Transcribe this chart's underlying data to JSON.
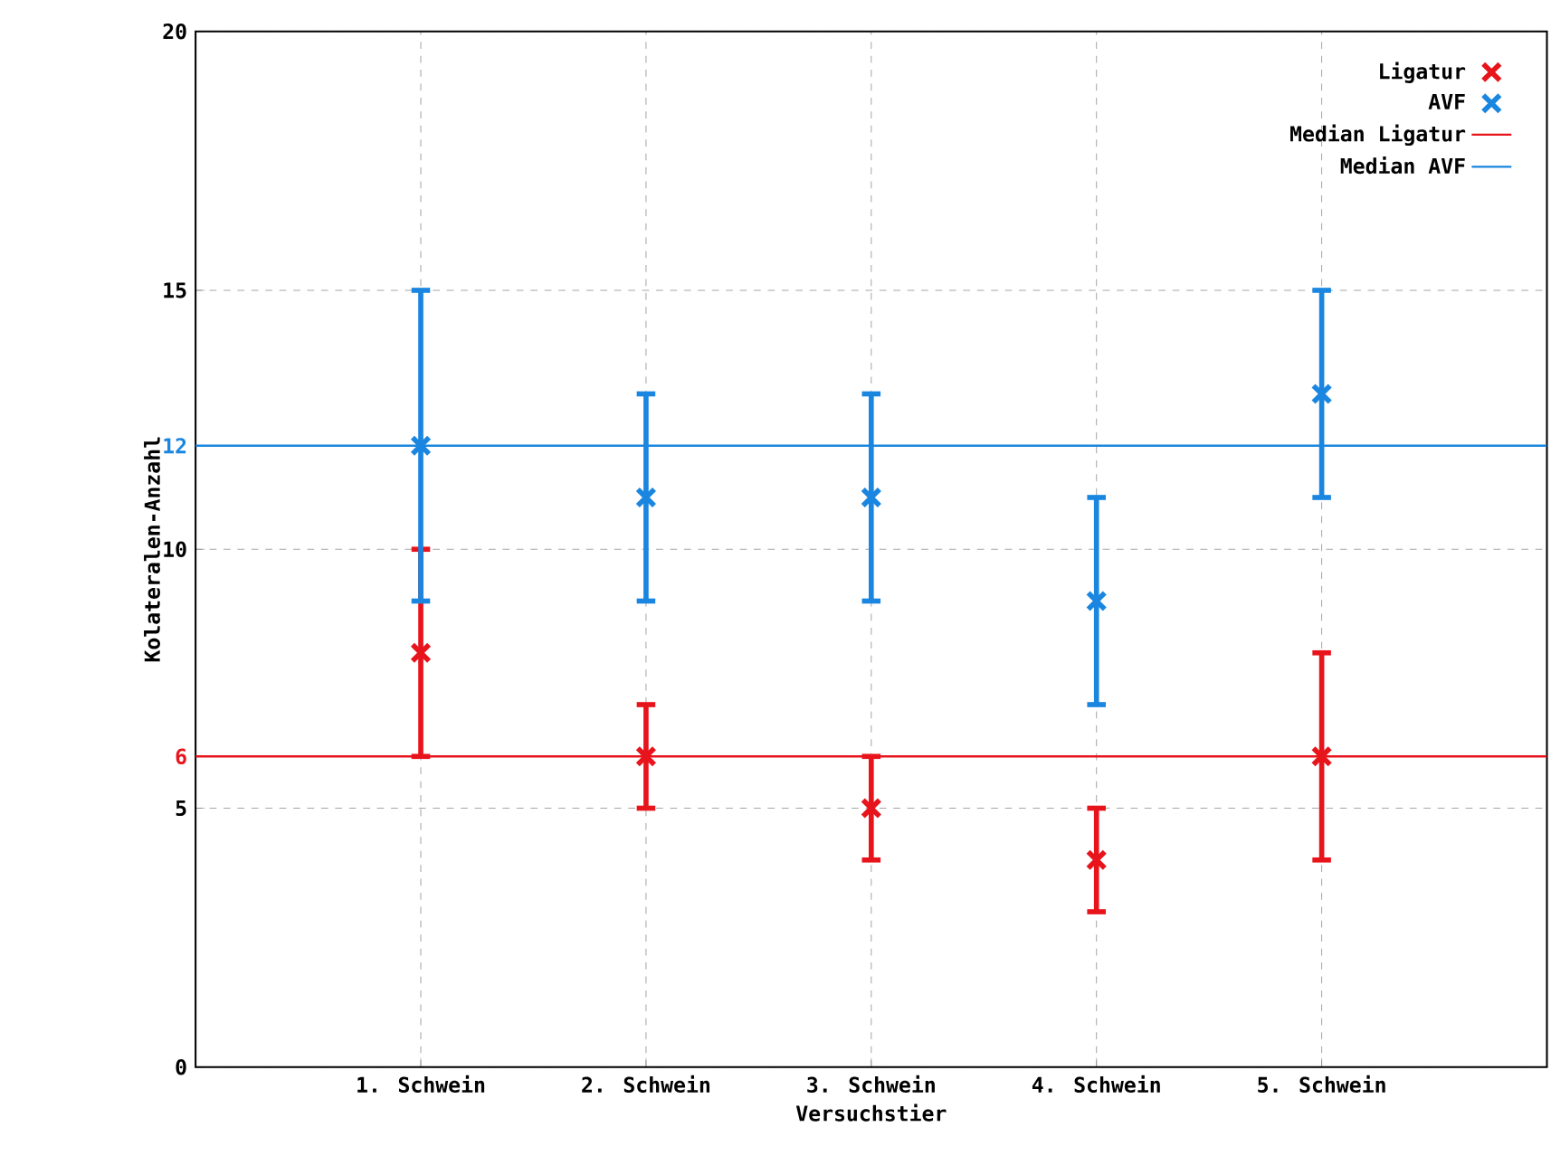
{
  "chart_data": {
    "type": "scatter",
    "xlabel": "Versuchstier",
    "ylabel": "Kolateralen-Anzahl",
    "categories": [
      "1. Schwein",
      "2. Schwein",
      "3. Schwein",
      "4. Schwein",
      "5. Schwein"
    ],
    "ylim": [
      0,
      20
    ],
    "yticks": [
      0,
      5,
      10,
      15,
      20,
      {
        "value": 6,
        "label": "6"
      },
      {
        "value": 12,
        "label": "12"
      }
    ],
    "grid": true,
    "legend": "top right",
    "series": [
      {
        "name": "Ligatur",
        "color": "#e8141c",
        "marker": "cross",
        "values": [
          8,
          6,
          5,
          4,
          6
        ],
        "errors": [
          [
            6,
            10
          ],
          [
            5,
            7
          ],
          [
            4,
            6
          ],
          [
            3,
            5
          ],
          [
            4,
            8
          ]
        ]
      },
      {
        "name": "AVF",
        "color": "#1a86e0",
        "marker": "cross",
        "values": [
          12,
          11,
          11,
          9,
          13
        ],
        "errors": [
          [
            9,
            15
          ],
          [
            9,
            13
          ],
          [
            9,
            13
          ],
          [
            7,
            11
          ],
          [
            11,
            15
          ]
        ]
      }
    ],
    "ref_lines": [
      {
        "axis": "y",
        "value": 6,
        "label": "Median Ligatur",
        "color": "#e8141c",
        "line_style": "solid"
      },
      {
        "axis": "y",
        "value": 12,
        "label": "Median AVF",
        "color": "#1a86e0",
        "line_style": "solid"
      }
    ]
  }
}
